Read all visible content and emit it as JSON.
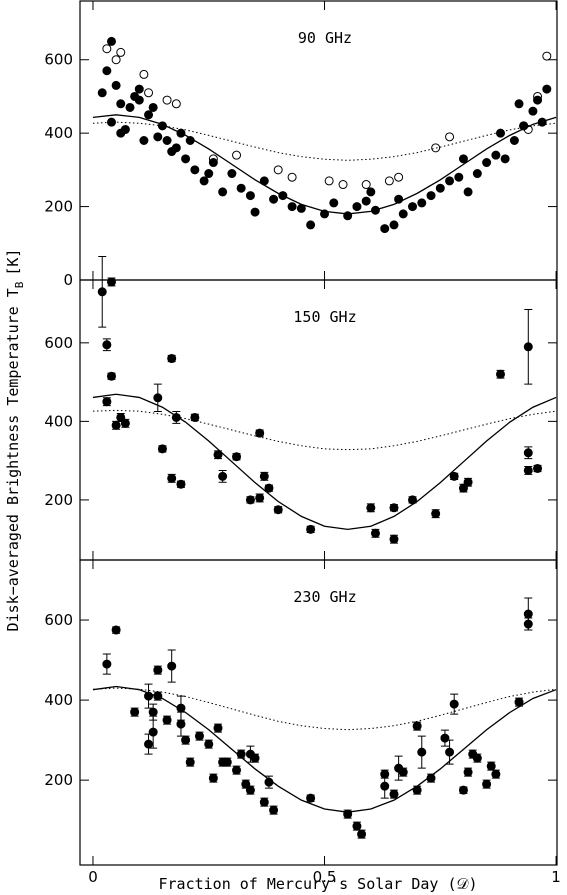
{
  "labels": {
    "ylabel": "Disk−averaged Brightness Temperature T",
    "ylabel_sub": "B",
    "ylabel_end": "[K]",
    "xlabel": "Fraction of Mercury's Solar Day (𝒟)"
  },
  "chart_data": [
    {
      "type": "scatter",
      "title": "90 GHz",
      "xlim": [
        -0.028,
        1.002
      ],
      "ylim": [
        0,
        760
      ],
      "xticks": [
        0,
        0.5,
        1
      ],
      "yticks": [
        0,
        200,
        400,
        600
      ],
      "xtick_labels": false,
      "color": "#000000",
      "series": [
        {
          "style": "filled",
          "x": [
            0.02,
            0.03,
            0.04,
            0.05,
            0.06,
            0.07,
            0.08,
            0.09,
            0.1,
            0.11,
            0.12,
            0.13,
            0.15,
            0.16,
            0.18,
            0.19,
            0.2,
            0.22,
            0.24,
            0.26,
            0.28,
            0.3,
            0.32,
            0.34,
            0.35,
            0.37,
            0.39,
            0.41,
            0.43,
            0.45,
            0.47,
            0.5,
            0.52,
            0.55,
            0.57,
            0.59,
            0.61,
            0.63,
            0.65,
            0.67,
            0.69,
            0.71,
            0.73,
            0.75,
            0.77,
            0.79,
            0.81,
            0.83,
            0.85,
            0.87,
            0.89,
            0.91,
            0.93,
            0.95,
            0.97,
            0.98,
            0.04,
            0.06,
            0.1,
            0.14,
            0.17,
            0.21,
            0.25,
            0.6,
            0.66,
            0.8,
            0.88,
            0.92,
            0.96
          ],
          "values": [
            510,
            570,
            650,
            530,
            480,
            410,
            470,
            500,
            490,
            380,
            450,
            470,
            420,
            380,
            360,
            400,
            330,
            300,
            270,
            320,
            240,
            290,
            250,
            230,
            185,
            270,
            220,
            230,
            200,
            195,
            150,
            180,
            210,
            175,
            200,
            215,
            190,
            140,
            150,
            180,
            200,
            210,
            230,
            250,
            270,
            280,
            240,
            290,
            320,
            340,
            330,
            380,
            420,
            460,
            430,
            520,
            430,
            400,
            520,
            390,
            350,
            380,
            290,
            240,
            220,
            330,
            400,
            480,
            490
          ]
        },
        {
          "style": "open",
          "x": [
            0.03,
            0.05,
            0.06,
            0.11,
            0.12,
            0.16,
            0.18,
            0.26,
            0.31,
            0.4,
            0.43,
            0.51,
            0.54,
            0.59,
            0.64,
            0.66,
            0.74,
            0.77,
            0.93,
            0.96,
            0.98,
            0.94
          ],
          "values": [
            630,
            600,
            620,
            560,
            510,
            490,
            480,
            330,
            340,
            300,
            280,
            270,
            260,
            260,
            270,
            280,
            360,
            390,
            420,
            500,
            610,
            410
          ]
        },
        {
          "style": "solid",
          "x": [
            0,
            0.05,
            0.1,
            0.15,
            0.2,
            0.25,
            0.3,
            0.35,
            0.4,
            0.45,
            0.5,
            0.55,
            0.6,
            0.65,
            0.7,
            0.75,
            0.8,
            0.85,
            0.9,
            0.95,
            1
          ],
          "values": [
            443,
            450,
            443,
            424,
            394,
            357,
            315,
            273,
            236,
            206,
            187,
            180,
            187,
            206,
            236,
            273,
            315,
            357,
            394,
            424,
            443
          ]
        },
        {
          "style": "dotted",
          "x": [
            0,
            0.05,
            0.1,
            0.15,
            0.2,
            0.25,
            0.3,
            0.35,
            0.4,
            0.45,
            0.5,
            0.55,
            0.6,
            0.65,
            0.7,
            0.75,
            0.8,
            0.85,
            0.9,
            0.95,
            1
          ],
          "values": [
            427,
            430,
            427,
            420,
            409,
            394,
            378,
            362,
            347,
            336,
            329,
            326,
            329,
            336,
            347,
            362,
            378,
            394,
            409,
            420,
            427
          ]
        }
      ]
    },
    {
      "type": "scatter",
      "title": "150 GHz",
      "xlim": [
        -0.028,
        1.002
      ],
      "ylim": [
        47,
        760
      ],
      "xticks": [
        0,
        0.5,
        1
      ],
      "yticks": [
        200,
        400,
        600
      ],
      "xtick_labels": false,
      "color": "#000000",
      "series": [
        {
          "style": "filled",
          "x": [
            0.02,
            0.04,
            0.03,
            0.03,
            0.04,
            0.05,
            0.06,
            0.07,
            0.14,
            0.15,
            0.17,
            0.17,
            0.18,
            0.19,
            0.22,
            0.27,
            0.28,
            0.31,
            0.34,
            0.36,
            0.36,
            0.37,
            0.38,
            0.4,
            0.47,
            0.6,
            0.61,
            0.65,
            0.65,
            0.69,
            0.74,
            0.78,
            0.8,
            0.81,
            0.88,
            0.94,
            0.94,
            0.94,
            0.96
          ],
          "values": [
            730,
            755,
            595,
            450,
            515,
            390,
            410,
            395,
            460,
            330,
            255,
            560,
            410,
            240,
            410,
            315,
            260,
            310,
            200,
            205,
            370,
            260,
            230,
            175,
            125,
            180,
            115,
            180,
            100,
            200,
            165,
            260,
            230,
            245,
            520,
            590,
            320,
            275,
            280
          ],
          "errors": [
            90,
            10,
            15,
            10,
            8,
            10,
            10,
            10,
            35,
            8,
            10,
            8,
            15,
            8,
            8,
            10,
            15,
            8,
            8,
            10,
            8,
            10,
            8,
            8,
            8,
            10,
            10,
            8,
            10,
            8,
            10,
            8,
            10,
            10,
            10,
            95,
            15,
            10,
            8
          ]
        },
        {
          "style": "solid",
          "x": [
            0,
            0.05,
            0.1,
            0.15,
            0.2,
            0.25,
            0.3,
            0.35,
            0.4,
            0.45,
            0.5,
            0.55,
            0.6,
            0.65,
            0.7,
            0.75,
            0.8,
            0.85,
            0.9,
            0.95,
            1
          ],
          "values": [
            461,
            469,
            461,
            436,
            398,
            350,
            297,
            244,
            196,
            158,
            133,
            125,
            133,
            158,
            196,
            244,
            297,
            350,
            398,
            436,
            461
          ]
        },
        {
          "style": "dotted",
          "x": [
            0,
            0.05,
            0.1,
            0.15,
            0.2,
            0.25,
            0.3,
            0.35,
            0.4,
            0.45,
            0.5,
            0.55,
            0.6,
            0.65,
            0.7,
            0.75,
            0.8,
            0.85,
            0.9,
            0.95,
            1
          ],
          "values": [
            426,
            428,
            426,
            418,
            407,
            393,
            378,
            363,
            349,
            338,
            330,
            328,
            330,
            338,
            349,
            363,
            378,
            393,
            407,
            418,
            426
          ]
        }
      ]
    },
    {
      "type": "scatter",
      "title": "230 GHz",
      "xlim": [
        -0.028,
        1.002
      ],
      "ylim": [
        -12,
        750
      ],
      "xticks": [
        0,
        0.5,
        1
      ],
      "yticks": [
        200,
        400,
        600
      ],
      "xtick_labels": true,
      "color": "#000000",
      "series": [
        {
          "style": "filled",
          "x": [
            0.03,
            0.05,
            0.09,
            0.12,
            0.12,
            0.13,
            0.13,
            0.14,
            0.14,
            0.16,
            0.17,
            0.19,
            0.19,
            0.2,
            0.21,
            0.23,
            0.25,
            0.26,
            0.27,
            0.28,
            0.29,
            0.31,
            0.32,
            0.33,
            0.34,
            0.34,
            0.35,
            0.37,
            0.38,
            0.39,
            0.47,
            0.55,
            0.57,
            0.58,
            0.63,
            0.63,
            0.65,
            0.66,
            0.67,
            0.7,
            0.7,
            0.71,
            0.73,
            0.76,
            0.77,
            0.78,
            0.8,
            0.81,
            0.82,
            0.83,
            0.85,
            0.86,
            0.87,
            0.92,
            0.94,
            0.94
          ],
          "values": [
            490,
            575,
            370,
            410,
            290,
            320,
            370,
            410,
            475,
            350,
            485,
            340,
            380,
            300,
            245,
            310,
            290,
            205,
            330,
            245,
            245,
            225,
            265,
            190,
            175,
            265,
            255,
            145,
            195,
            125,
            155,
            115,
            85,
            65,
            215,
            185,
            165,
            230,
            220,
            335,
            175,
            270,
            205,
            305,
            270,
            390,
            175,
            220,
            265,
            255,
            190,
            235,
            215,
            395,
            590,
            615
          ],
          "errors": [
            25,
            8,
            10,
            30,
            25,
            40,
            20,
            10,
            10,
            10,
            40,
            30,
            30,
            10,
            10,
            10,
            10,
            10,
            10,
            10,
            10,
            10,
            10,
            10,
            10,
            20,
            10,
            10,
            15,
            10,
            8,
            10,
            10,
            10,
            10,
            30,
            10,
            30,
            10,
            10,
            10,
            40,
            10,
            20,
            30,
            25,
            8,
            10,
            10,
            10,
            10,
            10,
            10,
            10,
            15,
            40
          ]
        },
        {
          "style": "solid",
          "x": [
            0,
            0.05,
            0.1,
            0.15,
            0.2,
            0.25,
            0.3,
            0.35,
            0.4,
            0.45,
            0.5,
            0.55,
            0.6,
            0.65,
            0.7,
            0.75,
            0.8,
            0.85,
            0.9,
            0.95,
            1
          ],
          "values": [
            426,
            434,
            426,
            404,
            369,
            326,
            277,
            228,
            185,
            150,
            128,
            120,
            128,
            150,
            185,
            228,
            277,
            326,
            369,
            404,
            426
          ]
        },
        {
          "style": "dotted",
          "x": [
            0,
            0.05,
            0.1,
            0.15,
            0.2,
            0.25,
            0.3,
            0.35,
            0.4,
            0.45,
            0.5,
            0.55,
            0.6,
            0.65,
            0.7,
            0.75,
            0.8,
            0.85,
            0.9,
            0.95,
            1
          ],
          "values": [
            427,
            430,
            427,
            420,
            409,
            394,
            378,
            362,
            347,
            336,
            329,
            326,
            329,
            336,
            347,
            362,
            378,
            394,
            409,
            420,
            427
          ]
        }
      ]
    }
  ]
}
